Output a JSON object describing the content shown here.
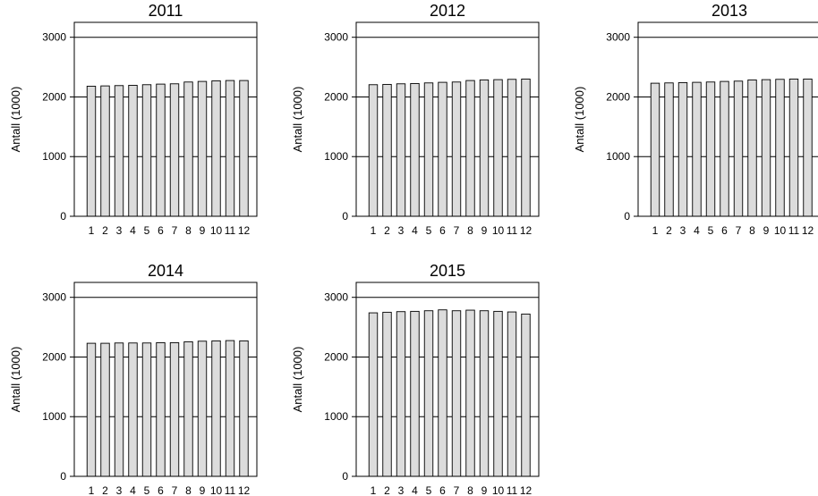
{
  "chart_data": [
    {
      "type": "bar",
      "title": "2011",
      "ylabel": "Antall (1000)",
      "xlabel": "",
      "categories": [
        "1",
        "2",
        "3",
        "4",
        "5",
        "6",
        "7",
        "8",
        "9",
        "10",
        "11",
        "12"
      ],
      "values": [
        2180,
        2185,
        2190,
        2195,
        2205,
        2215,
        2220,
        2250,
        2260,
        2270,
        2275,
        2275
      ],
      "ylim": [
        0,
        3250
      ],
      "yticks": [
        0,
        1000,
        2000,
        3000
      ],
      "grid": true
    },
    {
      "type": "bar",
      "title": "2012",
      "ylabel": "Antall (1000)",
      "xlabel": "",
      "categories": [
        "1",
        "2",
        "3",
        "4",
        "5",
        "6",
        "7",
        "8",
        "9",
        "10",
        "11",
        "12"
      ],
      "values": [
        2205,
        2210,
        2220,
        2225,
        2235,
        2245,
        2250,
        2275,
        2285,
        2290,
        2295,
        2300
      ],
      "ylim": [
        0,
        3250
      ],
      "yticks": [
        0,
        1000,
        2000,
        3000
      ],
      "grid": true
    },
    {
      "type": "bar",
      "title": "2013",
      "ylabel": "Antall (1000)",
      "xlabel": "",
      "categories": [
        "1",
        "2",
        "3",
        "4",
        "5",
        "6",
        "7",
        "8",
        "9",
        "10",
        "11",
        "12"
      ],
      "values": [
        2230,
        2235,
        2240,
        2245,
        2250,
        2260,
        2265,
        2285,
        2290,
        2295,
        2300,
        2300
      ],
      "ylim": [
        0,
        3250
      ],
      "yticks": [
        0,
        1000,
        2000,
        3000
      ],
      "grid": true
    },
    {
      "type": "bar",
      "title": "2014",
      "ylabel": "Antall (1000)",
      "xlabel": "",
      "categories": [
        "1",
        "2",
        "3",
        "4",
        "5",
        "6",
        "7",
        "8",
        "9",
        "10",
        "11",
        "12"
      ],
      "values": [
        2230,
        2230,
        2235,
        2235,
        2235,
        2240,
        2240,
        2255,
        2265,
        2270,
        2275,
        2270
      ],
      "ylim": [
        0,
        3250
      ],
      "yticks": [
        0,
        1000,
        2000,
        3000
      ],
      "grid": true
    },
    {
      "type": "bar",
      "title": "2015",
      "ylabel": "Antall (1000)",
      "xlabel": "",
      "categories": [
        "1",
        "2",
        "3",
        "4",
        "5",
        "6",
        "7",
        "8",
        "9",
        "10",
        "11",
        "12"
      ],
      "values": [
        2740,
        2750,
        2760,
        2765,
        2775,
        2790,
        2775,
        2785,
        2775,
        2765,
        2755,
        2720
      ],
      "ylim": [
        0,
        3250
      ],
      "yticks": [
        0,
        1000,
        2000,
        3000
      ],
      "grid": true
    }
  ]
}
